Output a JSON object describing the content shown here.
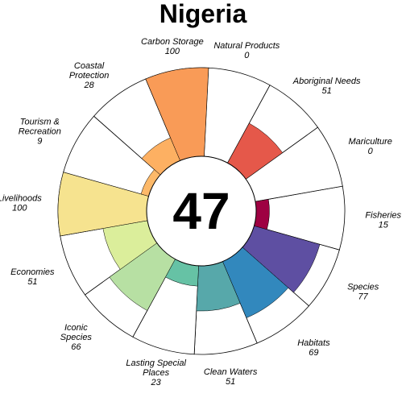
{
  "chart_data": {
    "type": "flower",
    "title": "Nigeria",
    "center_score": "47",
    "ylim": [
      0,
      100
    ],
    "petals": [
      {
        "name": "Fisheries",
        "label_lines": [
          "Fisheries"
        ],
        "value_label": "15",
        "value": 15,
        "color": "#9e0142"
      },
      {
        "name": "Species",
        "label_lines": [
          "Species"
        ],
        "value_label": "77",
        "value": 77,
        "color": "#5e4fa2"
      },
      {
        "name": "Habitats",
        "label_lines": [
          "Habitats"
        ],
        "value_label": "69",
        "value": 69,
        "color": "#3288bd"
      },
      {
        "name": "Clean Waters",
        "label_lines": [
          "Clean Waters"
        ],
        "value_label": "51",
        "value": 51,
        "color": "#57a8aa"
      },
      {
        "name": "Lasting Special Places",
        "label_lines": [
          "Lasting Special",
          "Places"
        ],
        "value_label": "23",
        "value": 23,
        "color": "#66c2a5"
      },
      {
        "name": "Iconic Species",
        "label_lines": [
          "Iconic",
          "Species"
        ],
        "value_label": "66",
        "value": 66,
        "color": "#b7e0a3"
      },
      {
        "name": "Economies",
        "label_lines": [
          "Economies"
        ],
        "value_label": "51",
        "value": 51,
        "color": "#dbee9b"
      },
      {
        "name": "Livelihoods",
        "label_lines": [
          "Livelihoods"
        ],
        "value_label": "100",
        "value": 100,
        "color": "#f6e38f"
      },
      {
        "name": "Tourism & Recreation",
        "label_lines": [
          "Tourism &",
          "Recreation"
        ],
        "value_label": "9",
        "value": 9,
        "color": "#fdb969"
      },
      {
        "name": "Coastal Protection",
        "label_lines": [
          "Coastal",
          "Protection"
        ],
        "value_label": "28",
        "value": 28,
        "color": "#fdb062"
      },
      {
        "name": "Carbon Storage",
        "label_lines": [
          "Carbon Storage"
        ],
        "value_label": "100",
        "value": 100,
        "color": "#f99b57"
      },
      {
        "name": "Natural Products",
        "label_lines": [
          "Natural Products"
        ],
        "value_label": "0",
        "value": 0,
        "color": "#f46d43"
      },
      {
        "name": "Aboriginal Needs",
        "label_lines": [
          "Aboriginal Needs"
        ],
        "value_label": "51",
        "value": 51,
        "color": "#e5584a"
      },
      {
        "name": "Mariculture",
        "label_lines": [
          "Mariculture"
        ],
        "value_label": "0",
        "value": 0,
        "color": "#d53e4f"
      }
    ]
  }
}
